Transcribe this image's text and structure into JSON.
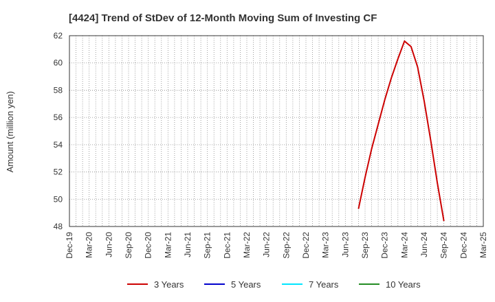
{
  "chart_data": {
    "type": "line",
    "title": "[4424]  Trend of StDev of 12-Month Moving Sum of Investing CF",
    "xlabel": "",
    "ylabel": "Amount (million yen)",
    "ylim": [
      48,
      62
    ],
    "yticks": [
      48,
      50,
      52,
      54,
      56,
      58,
      60,
      62
    ],
    "x_range": [
      "2019-12",
      "2025-03"
    ],
    "xtick_labels": [
      "Dec-19",
      "Mar-20",
      "Jun-20",
      "Sep-20",
      "Dec-20",
      "Mar-21",
      "Jun-21",
      "Sep-21",
      "Dec-21",
      "Mar-22",
      "Jun-22",
      "Sep-22",
      "Dec-22",
      "Mar-23",
      "Jun-23",
      "Sep-23",
      "Dec-23",
      "Mar-24",
      "Jun-24",
      "Sep-24",
      "Dec-24",
      "Mar-25"
    ],
    "grid": true,
    "legend_position": "bottom",
    "series": [
      {
        "name": "3 Years",
        "color": "#cc0000",
        "points": [
          [
            "2023-08",
            49.3
          ],
          [
            "2023-09",
            51.6
          ],
          [
            "2023-10",
            53.7
          ],
          [
            "2023-11",
            55.5
          ],
          [
            "2023-12",
            57.3
          ],
          [
            "2024-01",
            58.9
          ],
          [
            "2024-02",
            60.3
          ],
          [
            "2024-03",
            61.6
          ],
          [
            "2024-04",
            61.2
          ],
          [
            "2024-05",
            59.7
          ],
          [
            "2024-06",
            57.2
          ],
          [
            "2024-07",
            54.3
          ],
          [
            "2024-08",
            51.2
          ],
          [
            "2024-09",
            48.4
          ]
        ]
      },
      {
        "name": "5 Years",
        "color": "#0000cc",
        "points": []
      },
      {
        "name": "7 Years",
        "color": "#00e5ff",
        "points": []
      },
      {
        "name": "10 Years",
        "color": "#228b22",
        "points": []
      }
    ]
  }
}
